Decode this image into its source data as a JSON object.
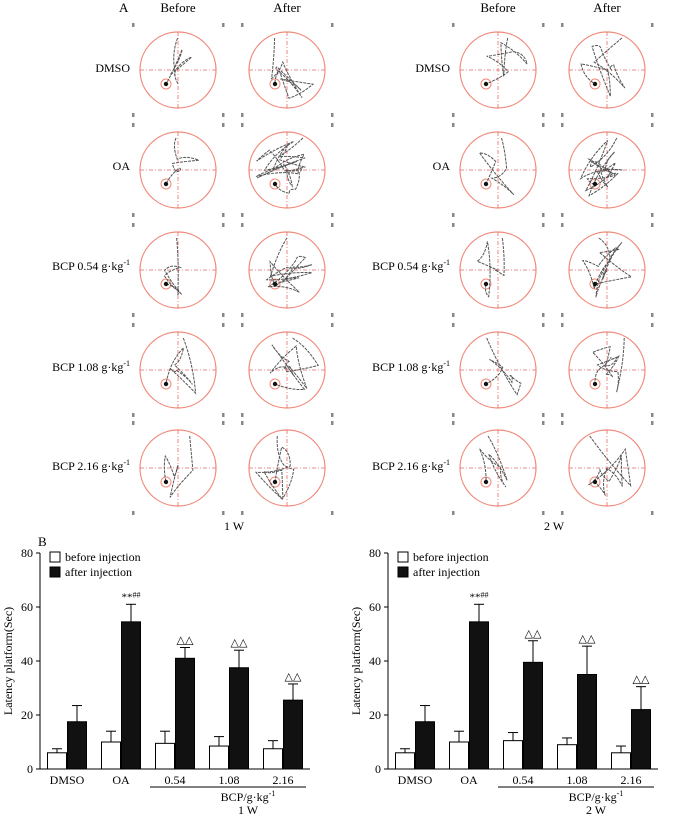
{
  "panel_a": {
    "label": "A",
    "column_headers": [
      "Before",
      "After"
    ],
    "row_labels": [
      {
        "text": "DMSO",
        "unit": ""
      },
      {
        "text": "OA",
        "unit": ""
      },
      {
        "text": "BCP 0.54 g·kg",
        "unit": "-1"
      },
      {
        "text": "BCP 1.08 g·kg",
        "unit": "-1"
      },
      {
        "text": "BCP 2.16 g·kg",
        "unit": "-1"
      }
    ],
    "week_labels": [
      "1 W",
      "2 W"
    ]
  },
  "colors": {
    "pool_circle": "#f08a7a",
    "crosshair": "#e86a6a",
    "track": "#555555",
    "bar_before": "#ffffff",
    "bar_after": "#111111"
  },
  "chart_data": [
    {
      "type": "bar",
      "panel_label": "B",
      "legend": [
        "before injection",
        "after injection"
      ],
      "categories": [
        "DMSO",
        "OA",
        "0.54",
        "1.08",
        "2.16"
      ],
      "series": [
        {
          "name": "before injection",
          "values": [
            6,
            10,
            9.5,
            8.5,
            7.5
          ],
          "errors": [
            1.5,
            4,
            4.5,
            3.5,
            3
          ]
        },
        {
          "name": "after injection",
          "values": [
            17.5,
            54.5,
            41,
            37.5,
            25.5
          ],
          "errors": [
            6,
            6.5,
            4,
            6.5,
            6
          ]
        }
      ],
      "annotations": [
        {
          "category": "OA",
          "text": "**",
          "superscript": "##"
        },
        {
          "category": "0.54",
          "text": "△△"
        },
        {
          "category": "1.08",
          "text": "△△"
        },
        {
          "category": "2.16",
          "text": "△△"
        }
      ],
      "ylabel": "Latency platform(Sec)",
      "ylim": [
        0,
        80
      ],
      "yticks": [
        0,
        20,
        40,
        60,
        80
      ],
      "group_label": "BCP/g·kg",
      "group_label_sup": "-1",
      "week_label": "1 W"
    },
    {
      "type": "bar",
      "panel_label": "",
      "legend": [
        "before injection",
        "after injection"
      ],
      "categories": [
        "DMSO",
        "OA",
        "0.54",
        "1.08",
        "2.16"
      ],
      "series": [
        {
          "name": "before injection",
          "values": [
            6,
            10,
            10.5,
            9,
            6
          ],
          "errors": [
            1.5,
            4,
            3,
            2.5,
            2.5
          ]
        },
        {
          "name": "after injection",
          "values": [
            17.5,
            54.5,
            39.5,
            35,
            22
          ],
          "errors": [
            6,
            6.5,
            8,
            10.5,
            8.5
          ]
        }
      ],
      "annotations": [
        {
          "category": "OA",
          "text": "**",
          "superscript": "##"
        },
        {
          "category": "0.54",
          "text": "△△"
        },
        {
          "category": "1.08",
          "text": "△△"
        },
        {
          "category": "2.16",
          "text": "△△"
        }
      ],
      "ylabel": "Latency platform(Sec)",
      "ylim": [
        0,
        80
      ],
      "yticks": [
        0,
        20,
        40,
        60,
        80
      ],
      "group_label": "BCP/g·kg",
      "group_label_sup": "-1",
      "week_label": "2 W"
    }
  ]
}
